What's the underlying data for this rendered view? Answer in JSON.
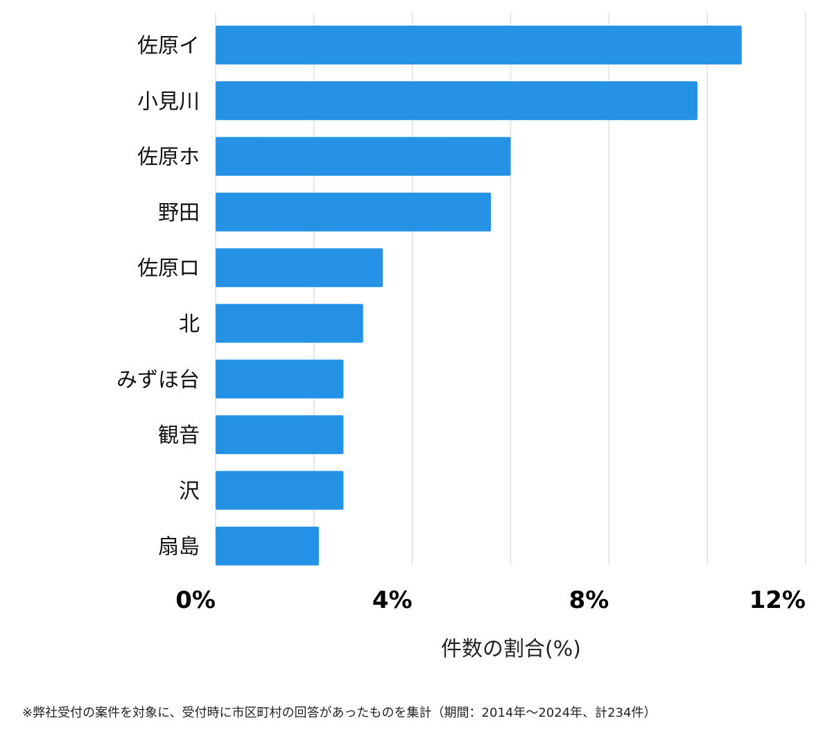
{
  "chart_data": {
    "type": "bar",
    "orientation": "horizontal",
    "categories": [
      "佐原イ",
      "小見川",
      "佐原ホ",
      "野田",
      "佐原ロ",
      "北",
      "みずほ台",
      "観音",
      "沢",
      "扇島"
    ],
    "values": [
      10.7,
      9.8,
      6.0,
      5.6,
      3.4,
      3.0,
      2.6,
      2.6,
      2.6,
      2.1
    ],
    "xlabel": "件数の割合(%)",
    "ylabel": "",
    "xlim": [
      0,
      12
    ],
    "xticks": [
      0,
      4,
      8,
      12
    ],
    "xtick_labels": [
      "0%",
      "4%",
      "8%",
      "12%"
    ],
    "grid": true,
    "bar_color": "#2692E6",
    "grid_color": "#e0e0e0"
  },
  "footnote": "※弊社受付の案件を対象に、受付時に市区町村の回答があったものを集計（期間：2014年～2024年、計234件）"
}
